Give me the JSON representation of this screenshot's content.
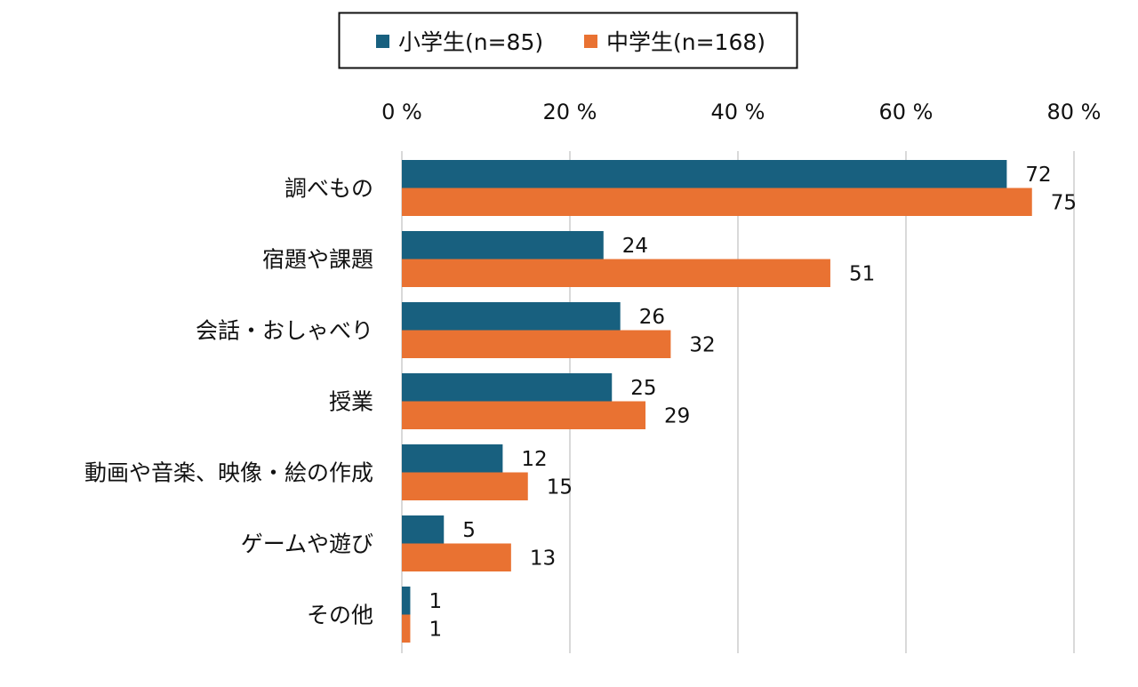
{
  "chart_data": {
    "type": "bar",
    "orientation": "horizontal",
    "categories": [
      "調べもの",
      "宿題や課題",
      "会話・おしゃべり",
      "授業",
      "動画や音楽、映像・絵の作成",
      "ゲームや遊び",
      "その他"
    ],
    "series": [
      {
        "name": "小学生(n=85)",
        "color": "#18607f",
        "values": [
          72,
          24,
          26,
          25,
          12,
          5,
          1
        ]
      },
      {
        "name": "中学生(n=168)",
        "color": "#e97232",
        "values": [
          75,
          51,
          32,
          29,
          15,
          13,
          1
        ]
      }
    ],
    "xlim": [
      0,
      80
    ],
    "xticks": [
      0,
      20,
      40,
      60,
      80
    ],
    "xtick_labels": [
      "0 %",
      "20 %",
      "40 %",
      "60 %",
      "80 %"
    ],
    "xaxis_position": "top",
    "grid": true,
    "legend_position": "top",
    "data_labels": true
  }
}
